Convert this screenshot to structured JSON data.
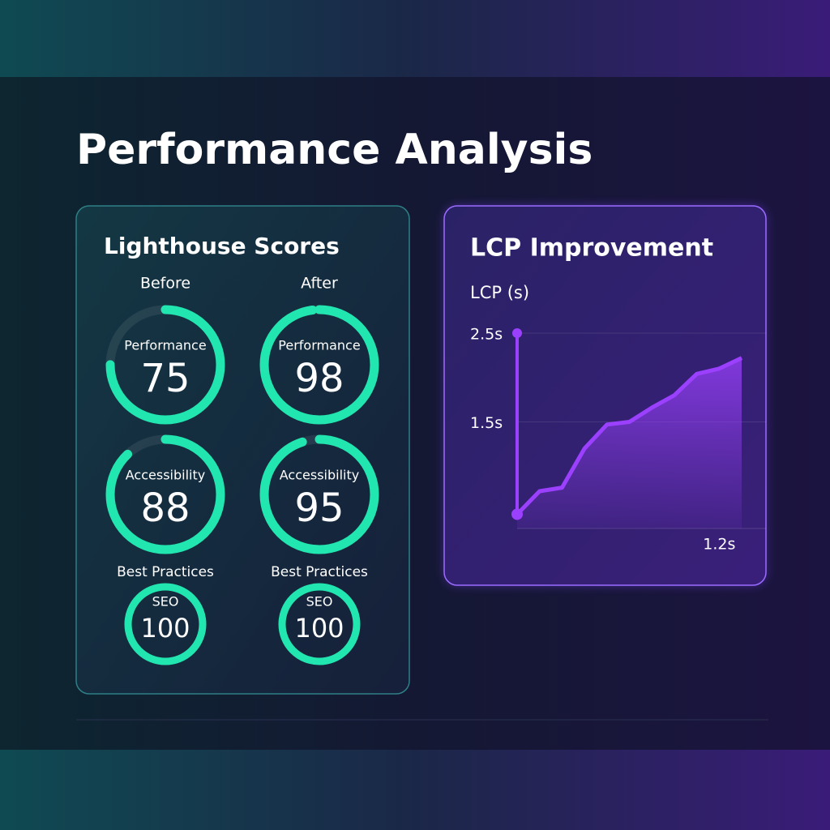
{
  "title": "Performance Analysis",
  "lighthouse": {
    "title": "Lighthouse Scores",
    "range": [
      0,
      100
    ],
    "color": "#22e6b0",
    "columns": [
      {
        "heading": "Before",
        "gauges": [
          {
            "label": "Performance",
            "value": 75
          },
          {
            "label": "Accessibility",
            "value": 88
          },
          {
            "caption": "Best Practices",
            "label": "SEO",
            "value": 100
          }
        ]
      },
      {
        "heading": "After",
        "gauges": [
          {
            "label": "Performance",
            "value": 98
          },
          {
            "label": "Accessibility",
            "value": 95
          },
          {
            "caption": "Best Practices",
            "label": "SEO",
            "value": 100
          }
        ]
      }
    ]
  },
  "chart_data": {
    "type": "area",
    "title": "LCP Improvement",
    "y_label": "LCP (s)",
    "color": "#9b40ff",
    "categories": [
      null,
      null,
      null,
      null,
      null,
      null,
      null,
      null,
      null,
      "1.2s",
      null
    ],
    "values": [
      0.46,
      0.72,
      0.76,
      1.2,
      1.47,
      1.5,
      1.66,
      1.8,
      2.04,
      2.1,
      2.22
    ],
    "peak": 2.5,
    "ylim": [
      0.3,
      2.6
    ],
    "yticks": [
      {
        "value": 2.5,
        "label": "2.5s"
      },
      {
        "value": 1.5,
        "label": "1.5s"
      }
    ],
    "grid": true
  }
}
